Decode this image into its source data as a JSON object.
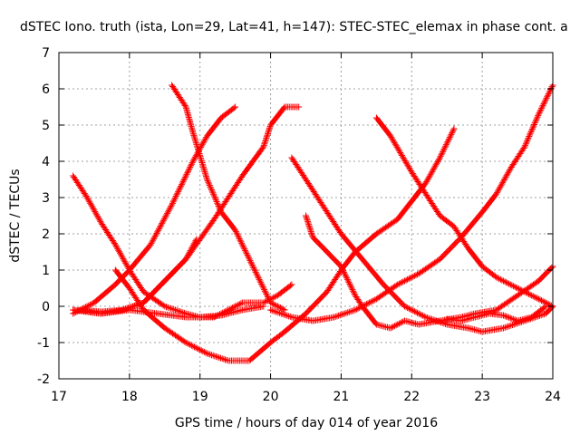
{
  "chart_data": {
    "type": "scatter",
    "title": "dSTEC Iono. truth (ista, Lon=29, Lat=41, h=147): STEC-STEC_elemax in phase cont. a",
    "xlabel": "GPS time / hours of day 014 of year 2016",
    "ylabel": "dSTEC  / TECUs",
    "xlim": [
      17,
      24
    ],
    "ylim": [
      -2,
      7
    ],
    "x_ticks": [
      17,
      18,
      19,
      20,
      21,
      22,
      23,
      24
    ],
    "y_ticks": [
      -2,
      -1,
      0,
      1,
      2,
      3,
      4,
      5,
      6,
      7
    ],
    "grid": true,
    "marker": "+",
    "color": "#ff0000",
    "series": [
      {
        "points": [
          [
            17.2,
            3.6
          ],
          [
            17.4,
            3.0
          ],
          [
            17.6,
            2.3
          ],
          [
            17.8,
            1.7
          ],
          [
            18.0,
            1.0
          ],
          [
            18.2,
            0.4
          ],
          [
            18.5,
            0.0
          ],
          [
            18.8,
            -0.2
          ],
          [
            19.0,
            -0.3
          ],
          [
            19.3,
            -0.25
          ],
          [
            19.6,
            -0.1
          ],
          [
            19.9,
            0.0
          ]
        ]
      },
      {
        "points": [
          [
            17.2,
            -0.1
          ],
          [
            17.4,
            -0.15
          ],
          [
            17.6,
            -0.2
          ],
          [
            17.9,
            -0.1
          ],
          [
            18.2,
            0.1
          ],
          [
            18.5,
            0.7
          ],
          [
            18.8,
            1.3
          ],
          [
            19.2,
            2.4
          ],
          [
            19.6,
            3.6
          ],
          [
            19.9,
            4.4
          ],
          [
            20.0,
            5.0
          ],
          [
            20.2,
            5.5
          ],
          [
            20.4,
            5.5
          ]
        ]
      },
      {
        "points": [
          [
            17.2,
            -0.2
          ],
          [
            17.5,
            0.1
          ],
          [
            17.8,
            0.6
          ],
          [
            18.0,
            1.0
          ],
          [
            18.3,
            1.7
          ],
          [
            18.6,
            2.8
          ],
          [
            18.9,
            4.0
          ],
          [
            19.1,
            4.7
          ],
          [
            19.3,
            5.2
          ],
          [
            19.5,
            5.5
          ]
        ]
      },
      {
        "points": [
          [
            18.6,
            6.1
          ],
          [
            18.8,
            5.5
          ],
          [
            18.9,
            4.8
          ],
          [
            19.1,
            3.5
          ],
          [
            19.3,
            2.6
          ],
          [
            19.5,
            2.1
          ],
          [
            19.7,
            1.3
          ],
          [
            19.9,
            0.5
          ],
          [
            20.0,
            0.1
          ],
          [
            20.2,
            -0.1
          ]
        ]
      },
      {
        "points": [
          [
            17.8,
            1.0
          ],
          [
            18.0,
            0.5
          ],
          [
            18.2,
            -0.1
          ],
          [
            18.5,
            -0.6
          ],
          [
            18.8,
            -1.0
          ],
          [
            19.1,
            -1.3
          ],
          [
            19.4,
            -1.5
          ],
          [
            19.7,
            -1.5
          ],
          [
            20.0,
            -1.0
          ],
          [
            20.2,
            -0.7
          ],
          [
            20.5,
            -0.2
          ],
          [
            20.8,
            0.4
          ],
          [
            21.0,
            1.0
          ],
          [
            21.2,
            1.5
          ],
          [
            21.5,
            2.0
          ],
          [
            21.8,
            2.4
          ],
          [
            22.0,
            2.9
          ],
          [
            22.2,
            3.4
          ],
          [
            22.4,
            4.1
          ],
          [
            22.6,
            4.9
          ]
        ]
      },
      {
        "points": [
          [
            17.3,
            -0.1
          ],
          [
            17.6,
            -0.15
          ],
          [
            17.9,
            -0.1
          ],
          [
            18.2,
            0.1
          ],
          [
            18.5,
            0.7
          ],
          [
            18.8,
            1.3
          ],
          [
            18.95,
            1.85
          ]
        ]
      },
      {
        "points": [
          [
            17.2,
            -0.1
          ],
          [
            17.6,
            -0.2
          ],
          [
            18.0,
            -0.1
          ],
          [
            18.4,
            -0.2
          ],
          [
            18.8,
            -0.3
          ],
          [
            19.2,
            -0.3
          ],
          [
            19.6,
            0.1
          ],
          [
            19.9,
            0.1
          ],
          [
            20.1,
            0.3
          ],
          [
            20.3,
            0.6
          ]
        ]
      },
      {
        "points": [
          [
            20.3,
            4.1
          ],
          [
            20.5,
            3.5
          ],
          [
            20.8,
            2.6
          ],
          [
            21.0,
            2.0
          ],
          [
            21.3,
            1.3
          ],
          [
            21.6,
            0.6
          ],
          [
            21.9,
            0.0
          ],
          [
            22.2,
            -0.3
          ],
          [
            22.5,
            -0.5
          ],
          [
            22.8,
            -0.6
          ],
          [
            23.0,
            -0.7
          ],
          [
            23.3,
            -0.6
          ],
          [
            23.6,
            -0.4
          ],
          [
            23.9,
            -0.2
          ],
          [
            24.0,
            0.0
          ]
        ]
      },
      {
        "points": [
          [
            20.5,
            2.5
          ],
          [
            20.6,
            1.9
          ],
          [
            20.8,
            1.5
          ],
          [
            21.0,
            1.1
          ],
          [
            21.2,
            0.3
          ],
          [
            21.3,
            0.0
          ],
          [
            21.5,
            -0.5
          ],
          [
            21.7,
            -0.6
          ],
          [
            21.9,
            -0.4
          ],
          [
            22.1,
            -0.5
          ],
          [
            22.4,
            -0.4
          ],
          [
            22.7,
            -0.3
          ],
          [
            22.9,
            -0.2
          ],
          [
            23.2,
            -0.1
          ],
          [
            23.5,
            0.3
          ],
          [
            23.8,
            0.7
          ],
          [
            24.0,
            1.1
          ]
        ]
      },
      {
        "points": [
          [
            20.0,
            -0.1
          ],
          [
            20.3,
            -0.3
          ],
          [
            20.6,
            -0.4
          ],
          [
            20.9,
            -0.3
          ],
          [
            21.2,
            -0.1
          ],
          [
            21.5,
            0.2
          ],
          [
            21.8,
            0.6
          ],
          [
            22.1,
            0.9
          ],
          [
            22.4,
            1.3
          ],
          [
            22.7,
            1.9
          ],
          [
            23.0,
            2.6
          ],
          [
            23.2,
            3.1
          ],
          [
            23.4,
            3.8
          ],
          [
            23.6,
            4.4
          ],
          [
            23.8,
            5.3
          ],
          [
            24.0,
            6.1
          ]
        ]
      },
      {
        "points": [
          [
            21.5,
            5.2
          ],
          [
            21.7,
            4.7
          ],
          [
            22.0,
            3.7
          ],
          [
            22.2,
            3.1
          ],
          [
            22.4,
            2.5
          ],
          [
            22.6,
            2.2
          ],
          [
            22.8,
            1.6
          ],
          [
            23.0,
            1.1
          ],
          [
            23.2,
            0.8
          ],
          [
            23.4,
            0.6
          ],
          [
            23.6,
            0.4
          ],
          [
            23.8,
            0.2
          ],
          [
            24.0,
            0.0
          ]
        ]
      },
      {
        "points": [
          [
            22.5,
            -0.35
          ],
          [
            22.7,
            -0.4
          ],
          [
            22.9,
            -0.3
          ],
          [
            23.1,
            -0.2
          ],
          [
            23.3,
            -0.25
          ],
          [
            23.5,
            -0.4
          ],
          [
            23.7,
            -0.3
          ],
          [
            23.9,
            0.0
          ]
        ]
      }
    ]
  }
}
